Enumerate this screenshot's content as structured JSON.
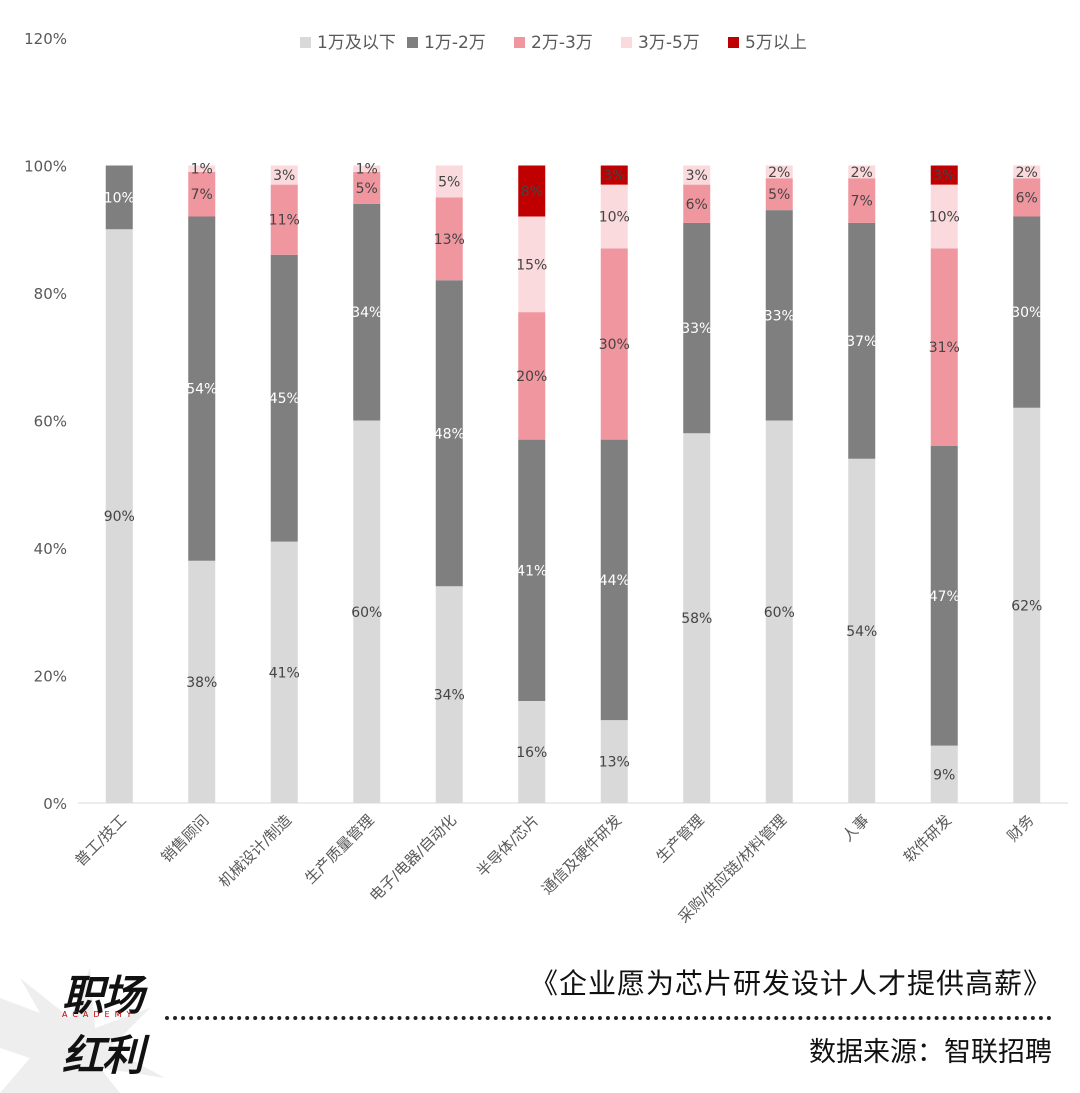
{
  "chart_data": {
    "type": "bar",
    "stacked": true,
    "categories": [
      "普工/技工",
      "销售顾问",
      "机械设计/制造",
      "生产质量管理",
      "电子/电器/自动化",
      "半导体/芯片",
      "通信及硬件研发",
      "生产管理",
      "采购/供应链/材料管理",
      "人事",
      "软件研发",
      "财务"
    ],
    "series": [
      {
        "name": "1万及以下",
        "color": "#d9d9d9",
        "label_color": "#444444",
        "values": [
          90,
          38,
          41,
          60,
          34,
          16,
          13,
          58,
          60,
          54,
          9,
          62
        ]
      },
      {
        "name": "1万-2万",
        "color": "#7f7f7f",
        "label_color": "#ffffff",
        "values": [
          10,
          54,
          45,
          34,
          48,
          41,
          44,
          33,
          33,
          37,
          47,
          30
        ]
      },
      {
        "name": "2万-3万",
        "color": "#f0969f",
        "label_color": "#444444",
        "values": [
          0,
          7,
          11,
          5,
          13,
          20,
          30,
          6,
          5,
          7,
          31,
          6
        ]
      },
      {
        "name": "3万-5万",
        "color": "#fadadd",
        "label_color": "#444444",
        "values": [
          0,
          1,
          3,
          1,
          5,
          15,
          10,
          3,
          2,
          2,
          10,
          2
        ]
      },
      {
        "name": "5万以上",
        "color": "#c00000",
        "label_color": "#444444",
        "values": [
          0,
          0,
          0,
          0,
          0,
          8,
          3,
          0,
          0,
          0,
          3,
          0
        ]
      }
    ],
    "ylim": [
      0,
      120
    ],
    "yticks": [
      "0%",
      "20%",
      "40%",
      "60%",
      "80%",
      "100%",
      "120%"
    ],
    "ytick_values": [
      0,
      20,
      40,
      60,
      80,
      100,
      120
    ],
    "legend_position": "top-center",
    "title": "",
    "xlabel": "",
    "ylabel": ""
  },
  "footer": {
    "title": "《企业愿为芯片研发设计人才提供高薪》",
    "source": "数据来源：智联招聘"
  },
  "logo": {
    "line1": "职场",
    "sub": "ACADEMY",
    "line2": "红利"
  }
}
